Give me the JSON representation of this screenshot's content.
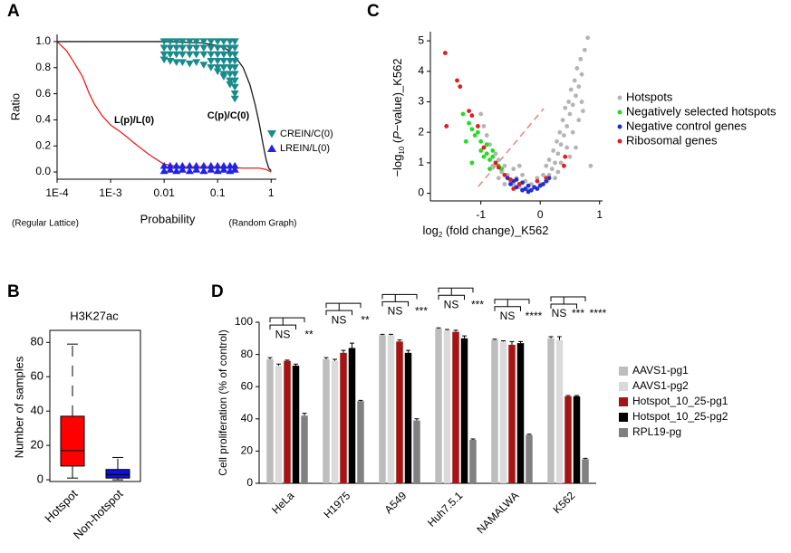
{
  "chart_data": [
    {
      "type": "line",
      "label": "A",
      "x_label": "Probability",
      "y_label": "Ratio",
      "xscale": "log",
      "xlim": [
        0.0001,
        1.25
      ],
      "xticks": [
        {
          "value": 0.0001,
          "label": "1E-4"
        },
        {
          "value": 0.001,
          "label": "1E-3"
        },
        0.01,
        0.1,
        1
      ],
      "ylim": [
        -0.055,
        1.055
      ],
      "yticks": [
        {
          "value": 0,
          "label": "0.0"
        },
        0.2,
        0.4,
        0.6,
        0.8,
        {
          "value": 1,
          "label": "1.0"
        }
      ],
      "notes": [
        "(Regular Lattice)",
        "(Random Graph)"
      ],
      "series": [
        {
          "name": "L(p)/L(0)",
          "color": "#e8201c",
          "style": "line",
          "x": [
            0.0001,
            0.00015,
            0.0002,
            0.0003,
            0.0004,
            0.0005,
            0.0007,
            0.001,
            0.0015,
            0.002,
            0.003,
            0.005,
            0.007,
            0.01,
            0.02,
            0.05,
            0.1,
            0.3,
            0.6,
            0.8,
            0.9,
            1
          ],
          "values": [
            1.0,
            0.93,
            0.85,
            0.73,
            0.6,
            0.52,
            0.43,
            0.36,
            0.31,
            0.27,
            0.21,
            0.14,
            0.1,
            0.06,
            0.04,
            0.04,
            0.04,
            0.03,
            0.03,
            0.02,
            0.01,
            0.0
          ]
        },
        {
          "name": "C(p)/C(0)",
          "color": "#1a1a1a",
          "style": "line",
          "x": [
            0.0001,
            0.001,
            0.01,
            0.05,
            0.1,
            0.15,
            0.2,
            0.3,
            0.4,
            0.5,
            0.6,
            0.7,
            0.8,
            0.9,
            1
          ],
          "values": [
            1.0,
            1.0,
            1.0,
            0.99,
            0.97,
            0.94,
            0.9,
            0.8,
            0.67,
            0.52,
            0.37,
            0.22,
            0.1,
            0.03,
            0.01
          ]
        },
        {
          "name": "CREIN/C(0)",
          "color": "#1a8a8a",
          "style": "triangle-down",
          "x": [
            0.01,
            0.01,
            0.01,
            0.01,
            0.013,
            0.013,
            0.013,
            0.013,
            0.017,
            0.017,
            0.017,
            0.017,
            0.022,
            0.022,
            0.022,
            0.022,
            0.03,
            0.03,
            0.03,
            0.03,
            0.04,
            0.04,
            0.04,
            0.04,
            0.055,
            0.055,
            0.055,
            0.055,
            0.075,
            0.075,
            0.075,
            0.075,
            0.075,
            0.1,
            0.1,
            0.1,
            0.1,
            0.1,
            0.1,
            0.13,
            0.13,
            0.13,
            0.13,
            0.13,
            0.13,
            0.13,
            0.17,
            0.17,
            0.17,
            0.17,
            0.17,
            0.17,
            0.17,
            0.17,
            0.21,
            0.21,
            0.21,
            0.21,
            0.21,
            0.21,
            0.21,
            0.21,
            0.21,
            0.21
          ],
          "values": [
            1,
            0.95,
            0.9,
            0.86,
            1,
            0.95,
            0.9,
            0.85,
            1,
            0.95,
            0.9,
            0.84,
            1,
            0.95,
            0.9,
            0.84,
            1,
            0.95,
            0.9,
            0.83,
            1,
            0.95,
            0.9,
            0.84,
            1,
            0.95,
            0.9,
            0.82,
            1,
            0.95,
            0.9,
            0.85,
            0.8,
            1,
            0.95,
            0.9,
            0.85,
            0.8,
            0.77,
            1,
            0.95,
            0.9,
            0.85,
            0.8,
            0.75,
            0.73,
            1,
            0.95,
            0.9,
            0.85,
            0.8,
            0.75,
            0.7,
            0.67,
            1,
            0.95,
            0.9,
            0.85,
            0.8,
            0.75,
            0.7,
            0.65,
            0.6,
            0.56
          ]
        },
        {
          "name": "LREIN/L(0)",
          "color": "#2222e6",
          "style": "triangle-up",
          "x": [
            0.01,
            0.01,
            0.013,
            0.013,
            0.017,
            0.017,
            0.022,
            0.022,
            0.03,
            0.03,
            0.04,
            0.04,
            0.055,
            0.055,
            0.075,
            0.075,
            0.1,
            0.1,
            0.13,
            0.13,
            0.17,
            0.17,
            0.21,
            0.21
          ],
          "values": [
            0.01,
            0.05,
            0.02,
            0.05,
            0.01,
            0.05,
            0.02,
            0.05,
            0.01,
            0.05,
            0.02,
            0.05,
            0.01,
            0.05,
            0.02,
            0.05,
            0.01,
            0.05,
            0.02,
            0.05,
            0.01,
            0.05,
            0.02,
            0.05
          ]
        }
      ]
    },
    {
      "type": "scatter",
      "label": "C",
      "x_label": [
        "log",
        "2",
        " (fold change)_K562"
      ],
      "y_label": [
        "−log",
        "10",
        " (",
        "P",
        "−value)_K562"
      ],
      "xlim": [
        -1.85,
        1.05
      ],
      "xticks": [
        -1,
        0,
        1
      ],
      "ylim": [
        -0.25,
        5.3
      ],
      "yticks": [
        0,
        1,
        2,
        3,
        4,
        5
      ],
      "series": [
        {
          "name": "Hotspots",
          "color": "#b4b4b4",
          "x": [
            -0.45,
            -0.4,
            -0.35,
            -0.3,
            -0.25,
            -0.2,
            -0.15,
            -0.1,
            -0.05,
            0,
            0.05,
            0.1,
            0.12,
            0.15,
            0.2,
            0.22,
            0.25,
            0.28,
            0.3,
            0.33,
            0.35,
            0.38,
            0.4,
            0.42,
            0.45,
            0.48,
            0.5,
            0.52,
            0.55,
            0.58,
            0.6,
            0.62,
            0.65,
            0.68,
            0.7,
            0.72,
            0.75,
            0.8,
            0.85,
            0.6,
            0.5,
            0.4,
            0.3,
            -0.5,
            -0.55,
            -0.6,
            -0.65,
            -0.7,
            -0.75,
            -0.8,
            -0.85,
            -0.9,
            -0.95,
            -0.6,
            -0.45,
            -0.35,
            -0.7,
            -1.0,
            0.55,
            0.45,
            0.35,
            0.25,
            0.65,
            0.7,
            0.15
          ],
          "values": [
            0.3,
            0.5,
            0.2,
            0.6,
            0.4,
            0.1,
            0.3,
            0.2,
            0.5,
            0.3,
            0.6,
            0.9,
            0.4,
            1.1,
            0.8,
            1.4,
            1.0,
            1.7,
            1.3,
            2.0,
            1.6,
            2.4,
            1.9,
            2.8,
            2.2,
            3.0,
            2.6,
            3.4,
            2.9,
            3.7,
            3.2,
            4.1,
            3.5,
            4.4,
            3.9,
            2.7,
            4.7,
            5.1,
            0.9,
            1.5,
            1.2,
            0.9,
            0.7,
            0.4,
            0.6,
            0.9,
            0.7,
            1.1,
            1.3,
            0.9,
            1.6,
            1.9,
            2.2,
            0.3,
            0.8,
            0.9,
            0.5,
            2.6,
            2.0,
            1.5,
            1.0,
            0.5,
            2.4,
            3.0,
            0.6
          ]
        },
        {
          "name": "Negatively selected hotspots",
          "color": "#22dd22",
          "x": [
            -1.3,
            -1.2,
            -1.15,
            -1.1,
            -1.05,
            -1.0,
            -0.95,
            -0.9,
            -0.85,
            -0.8,
            -1.0,
            -0.9,
            -0.75,
            -0.7,
            -0.65,
            -1.15,
            -0.85,
            -1.25,
            -0.95,
            -0.8
          ],
          "values": [
            2.6,
            2.3,
            2.1,
            1.9,
            2.0,
            1.7,
            1.5,
            1.3,
            1.1,
            1.2,
            1.4,
            1.6,
            1.0,
            0.9,
            0.8,
            1.0,
            0.8,
            1.7,
            1.2,
            1.4
          ]
        },
        {
          "name": "Negative control genes",
          "color": "#1f2fd6",
          "x": [
            -0.55,
            -0.5,
            -0.45,
            -0.4,
            -0.35,
            -0.3,
            -0.25,
            -0.2,
            -0.15,
            -0.1,
            -0.05,
            0.0,
            0.05,
            0.1,
            0.15,
            -0.3,
            -0.4,
            -0.2
          ],
          "values": [
            0.5,
            0.3,
            0.4,
            0.2,
            0.3,
            0.1,
            0.15,
            0.05,
            0.1,
            0.2,
            0.15,
            0.25,
            0.3,
            0.4,
            0.5,
            0.35,
            0.45,
            0.25
          ]
        },
        {
          "name": "Ribosomal genes",
          "color": "#dd1f1f",
          "x": [
            -1.6,
            -1.58,
            -1.4,
            -1.35,
            -1.2,
            -1.15,
            -1.05,
            -0.95,
            -0.75,
            -0.7,
            -0.6,
            -0.5,
            -0.45,
            -0.35,
            -0.05,
            0.1,
            0.4,
            0.42
          ],
          "values": [
            4.6,
            2.2,
            3.7,
            3.5,
            2.7,
            2.55,
            2.2,
            1.5,
            1.0,
            0.85,
            0.6,
            0.45,
            0.15,
            0.3,
            0.4,
            0.5,
            0.9,
            1.2
          ]
        }
      ]
    },
    {
      "type": "box",
      "label": "B",
      "title": "H3K27ac",
      "y_label": "Number of samples",
      "ylim": [
        -1,
        87
      ],
      "yticks": [
        0,
        20,
        40,
        60,
        80
      ],
      "categories": [
        "Hotspot",
        "Non-hotspot"
      ],
      "boxes": [
        {
          "min": 1,
          "q1": 8,
          "median": 17,
          "q3": 37,
          "max": 79,
          "color": "#ff0000"
        },
        {
          "min": 0,
          "q1": 1,
          "median": 3,
          "q3": 6,
          "max": 13,
          "color": "#1010dd"
        }
      ]
    },
    {
      "type": "bar",
      "label": "D",
      "y_label": "Cell proliferation (% of control)",
      "ylim": [
        0,
        100
      ],
      "yticks": [
        0,
        20,
        40,
        60,
        80,
        100
      ],
      "categories": [
        "HeLa",
        "H1975",
        "A549",
        "Huh7.5.1",
        "NAMALWA",
        "K562"
      ],
      "series": [
        {
          "name": "AAVS1-pg1",
          "color": "#bdbdbd",
          "values": [
            77,
            77,
            92,
            96,
            89,
            90
          ],
          "errors": [
            1,
            1,
            0.5,
            0.5,
            0.5,
            1
          ]
        },
        {
          "name": "AAVS1-pg2",
          "color": "#dadada",
          "values": [
            73,
            76,
            92,
            95,
            88,
            89
          ],
          "errors": [
            1,
            1,
            0.5,
            0.5,
            0.5,
            2
          ]
        },
        {
          "name": "Hotspot_10_25-pg1",
          "color": "#a31515",
          "values": [
            76,
            81,
            88,
            94,
            86,
            54
          ],
          "errors": [
            0.5,
            1.5,
            1,
            1,
            2,
            0.5
          ]
        },
        {
          "name": "Hotspot_10_25-pg2",
          "color": "#000000",
          "values": [
            73,
            84,
            81,
            90,
            87,
            54
          ],
          "errors": [
            1,
            3,
            1.5,
            1.5,
            1,
            0.5
          ]
        },
        {
          "name": "RPL19-pg",
          "color": "#808080",
          "values": [
            42,
            51,
            39,
            27,
            30,
            15
          ],
          "errors": [
            1.5,
            0.5,
            1,
            0.5,
            0.5,
            0.5
          ]
        }
      ],
      "significance": [
        [
          "NS",
          "**"
        ],
        [
          "NS",
          "**"
        ],
        [
          "NS",
          "***"
        ],
        [
          "NS",
          "***"
        ],
        [
          "NS",
          "****"
        ],
        [
          "NS",
          "***",
          "****"
        ]
      ]
    }
  ]
}
